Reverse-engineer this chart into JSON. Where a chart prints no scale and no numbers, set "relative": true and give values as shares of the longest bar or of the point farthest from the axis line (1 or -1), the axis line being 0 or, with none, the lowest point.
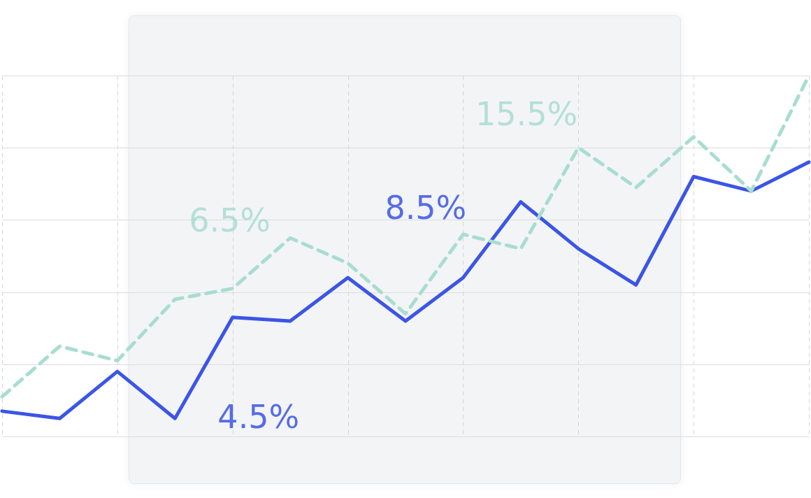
{
  "chart_data": {
    "type": "line",
    "relative": true,
    "grid": true,
    "categories": [
      null,
      null,
      null,
      null,
      null,
      null,
      null,
      null,
      null,
      null,
      null,
      null,
      null,
      null,
      null
    ],
    "series": [
      {
        "color": "#3b55e6",
        "line_style": "solid",
        "values": [
          0.07,
          0.05,
          0.18,
          0.05,
          0.33,
          0.32,
          0.44,
          0.32,
          0.44,
          0.65,
          0.52,
          0.42,
          0.72,
          0.68,
          0.76
        ]
      },
      {
        "color": "#a8ddd0",
        "line_style": "dashed",
        "values": [
          0.11,
          0.25,
          0.21,
          0.38,
          0.41,
          0.55,
          0.48,
          0.34,
          0.56,
          0.52,
          0.8,
          0.69,
          0.83,
          0.68,
          1
        ]
      }
    ],
    "annotations": [
      "15.5%",
      "8.5%",
      "6.5%",
      "4.5%"
    ]
  }
}
